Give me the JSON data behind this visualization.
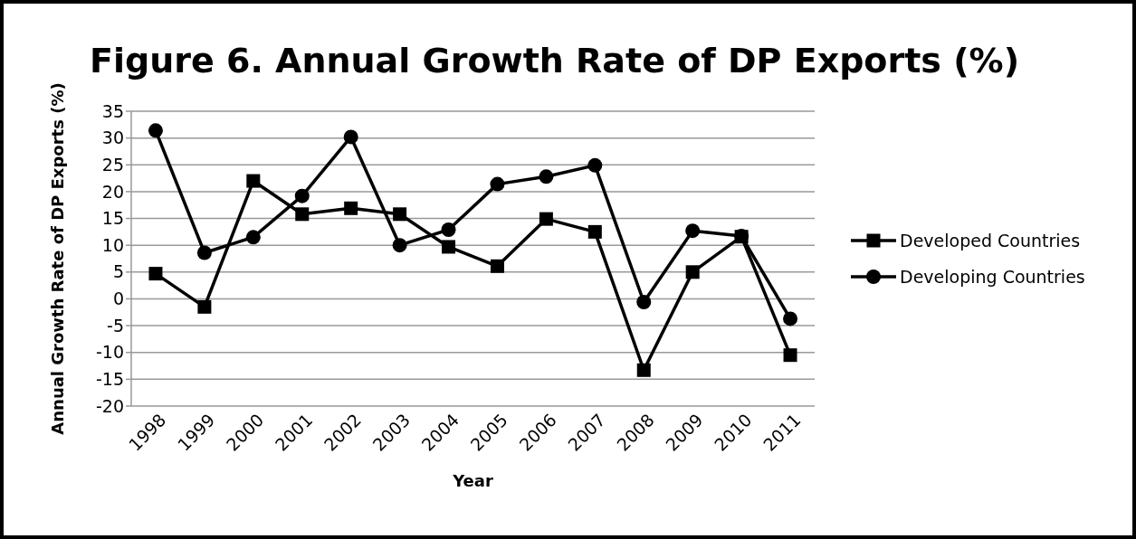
{
  "chart_data": {
    "type": "line",
    "title": "Figure 6. Annual Growth Rate of DP Exports (%)",
    "xlabel": "Year",
    "ylabel": "Annual Growth Rate of DP Exports (%)",
    "categories": [
      "1998",
      "1999",
      "2000",
      "2001",
      "2002",
      "2003",
      "2004",
      "2005",
      "2006",
      "2007",
      "2008",
      "2009",
      "2010",
      "2011"
    ],
    "series": [
      {
        "name": "Developed Countries",
        "color": "#000000",
        "marker": "square",
        "values": [
          4.7,
          -1.5,
          22,
          15.8,
          16.9,
          15.8,
          9.7,
          6.1,
          14.9,
          12.5,
          -13.3,
          5,
          11.6,
          -10.5
        ]
      },
      {
        "name": "Developing Countries",
        "color": "#000000",
        "marker": "circle",
        "values": [
          31.4,
          8.6,
          11.5,
          19.2,
          30.2,
          10,
          12.9,
          21.4,
          22.8,
          24.9,
          -0.6,
          12.7,
          11.7,
          -3.7
        ]
      }
    ],
    "ylim": [
      -20,
      35
    ],
    "yticks": [
      -20,
      -15,
      -10,
      -5,
      0,
      5,
      10,
      15,
      20,
      25,
      30,
      35
    ],
    "grid": "y",
    "legend": "right"
  }
}
